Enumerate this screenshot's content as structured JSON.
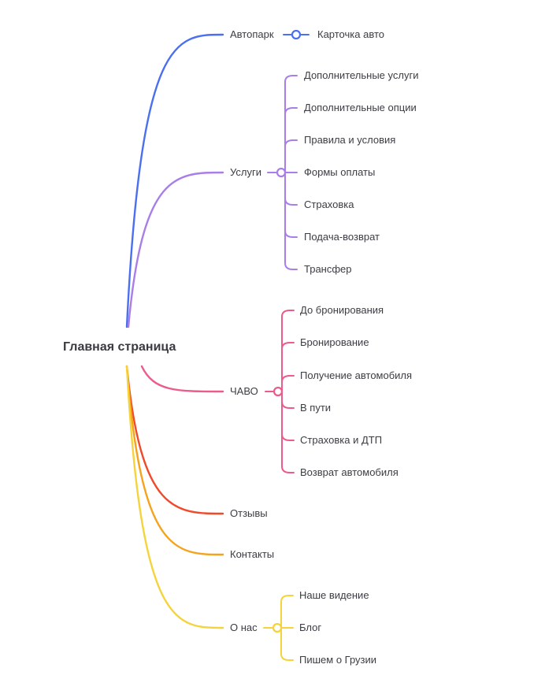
{
  "root": {
    "label": "Главная страница"
  },
  "branches": [
    {
      "key": "avtopark",
      "label": "Автопарк",
      "color": "#4a6ff0",
      "children": [
        "Карточка авто"
      ]
    },
    {
      "key": "uslugi",
      "label": "Услуги",
      "color": "#a97ee8",
      "children": [
        "Дополнительные услуги",
        "Дополнительные опции",
        "Правила и условия",
        "Формы оплаты",
        "Страховка",
        "Подача-возврат",
        "Трансфер"
      ]
    },
    {
      "key": "chavo",
      "label": "ЧАВО",
      "color": "#ec5b8e",
      "children": [
        "До бронирования",
        "Бронирование",
        "Получение автомобиля",
        "В пути",
        "Страховка и ДТП",
        "Возврат автомобиля"
      ]
    },
    {
      "key": "otzyvy",
      "label": "Отзывы",
      "color": "#f04a2a",
      "children": []
    },
    {
      "key": "kontakty",
      "label": "Контакты",
      "color": "#f5a21c",
      "children": []
    },
    {
      "key": "o-nas",
      "label": "О нас",
      "color": "#f5d33a",
      "children": [
        "Наше видение",
        "Блог",
        "Пишем о Грузии"
      ]
    }
  ]
}
